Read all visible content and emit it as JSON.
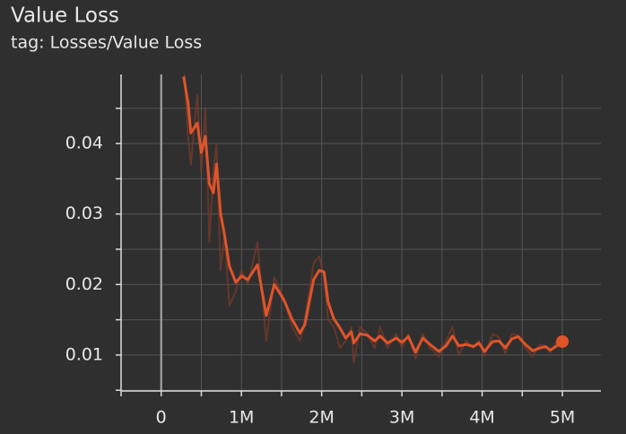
{
  "chart_data": {
    "type": "line",
    "title": "Value Loss",
    "subtitle": "tag: Losses/Value Loss",
    "x": [
      280000,
      335000,
      370000,
      450000,
      500000,
      550000,
      600000,
      650000,
      690000,
      740000,
      790000,
      850000,
      930000,
      1000000,
      1080000,
      1200000,
      1310000,
      1410000,
      1530000,
      1630000,
      1730000,
      1790000,
      1900000,
      1970000,
      2030000,
      2080000,
      2150000,
      2230000,
      2300000,
      2370000,
      2400000,
      2480000,
      2570000,
      2660000,
      2730000,
      2820000,
      2930000,
      3000000,
      3080000,
      3170000,
      3260000,
      3350000,
      3460000,
      3550000,
      3630000,
      3710000,
      3800000,
      3890000,
      3960000,
      4030000,
      4130000,
      4210000,
      4290000,
      4370000,
      4450000,
      4540000,
      4630000,
      4720000,
      4790000,
      4850000,
      4920000,
      5000000
    ],
    "series": [
      {
        "color": "#7a3a2a",
        "values": [
          0.052,
          0.041,
          0.037,
          0.047,
          0.036,
          0.045,
          0.026,
          0.036,
          0.04,
          0.022,
          0.027,
          0.017,
          0.019,
          0.022,
          0.02,
          0.026,
          0.012,
          0.021,
          0.018,
          0.014,
          0.012,
          0.015,
          0.023,
          0.024,
          0.021,
          0.015,
          0.014,
          0.011,
          0.012,
          0.014,
          0.009,
          0.014,
          0.013,
          0.011,
          0.014,
          0.011,
          0.013,
          0.011,
          0.013,
          0.0095,
          0.013,
          0.011,
          0.0098,
          0.012,
          0.014,
          0.01,
          0.012,
          0.011,
          0.012,
          0.0098,
          0.013,
          0.0125,
          0.0102,
          0.013,
          0.0128,
          0.011,
          0.0098,
          0.0115,
          0.0112,
          0.0103,
          0.0118,
          0.012
        ]
      },
      {
        "color": "#e0542a",
        "values": [
          0.0495,
          0.0457,
          0.0415,
          0.0429,
          0.0387,
          0.041,
          0.0343,
          0.033,
          0.0371,
          0.0301,
          0.027,
          0.0226,
          0.0203,
          0.0212,
          0.0207,
          0.0228,
          0.0156,
          0.02,
          0.0178,
          0.0151,
          0.0131,
          0.0143,
          0.0207,
          0.022,
          0.0218,
          0.0175,
          0.0152,
          0.0138,
          0.0124,
          0.0133,
          0.0117,
          0.013,
          0.0128,
          0.012,
          0.0127,
          0.0117,
          0.0124,
          0.0118,
          0.0126,
          0.0104,
          0.0124,
          0.0115,
          0.0105,
          0.0113,
          0.0127,
          0.0113,
          0.0115,
          0.0112,
          0.0117,
          0.0105,
          0.0119,
          0.012,
          0.011,
          0.0123,
          0.0126,
          0.0115,
          0.0106,
          0.011,
          0.0112,
          0.0107,
          0.0112,
          0.0119
        ]
      }
    ],
    "xlim": [
      -500000,
      5480000
    ],
    "ylim": [
      0.0049,
      0.0498
    ],
    "xticks": [
      0,
      {
        "value": 1000000,
        "label": "1M"
      },
      {
        "value": 2000000,
        "label": "2M"
      },
      {
        "value": 3000000,
        "label": "3M"
      },
      {
        "value": 4000000,
        "label": "4M"
      },
      {
        "value": 5000000,
        "label": "5M"
      }
    ],
    "xticks_minor": [
      -500000,
      500000,
      1500000,
      2500000,
      3500000,
      4500000
    ],
    "yticks": [
      0.01,
      0.02,
      0.03,
      0.04
    ],
    "yticks_minor": [
      0.005,
      0.015,
      0.025,
      0.035,
      0.045
    ],
    "grid": true
  }
}
